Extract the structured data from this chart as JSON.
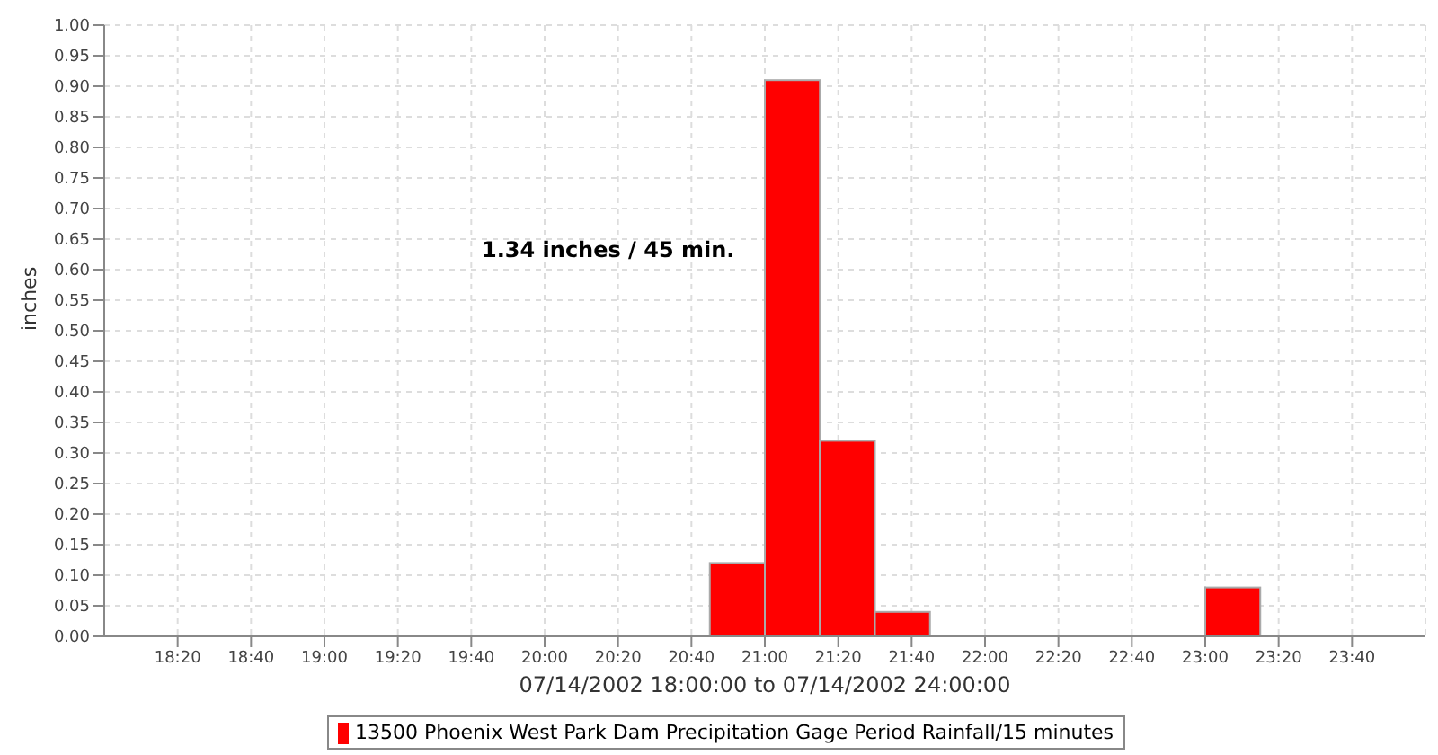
{
  "chart_data": {
    "type": "histogram",
    "xlabel": "07/14/2002 18:00:00 to 07/14/2002 24:00:00",
    "ylabel": "inches",
    "annotations": [
      "1.34 inches / 45 min."
    ],
    "bins": [
      "2002-07-14T18:00",
      "2002-07-14T18:15",
      "2002-07-14T18:30",
      "2002-07-14T18:45",
      "2002-07-14T19:00",
      "2002-07-14T19:15",
      "2002-07-14T19:30",
      "2002-07-14T19:45",
      "2002-07-14T20:00",
      "2002-07-14T20:15",
      "2002-07-14T20:30",
      "2002-07-14T20:45",
      "2002-07-14T21:00",
      "2002-07-14T21:15",
      "2002-07-14T21:30",
      "2002-07-14T21:45",
      "2002-07-14T22:00",
      "2002-07-14T22:15",
      "2002-07-14T22:30",
      "2002-07-14T22:45",
      "2002-07-14T23:00",
      "2002-07-14T23:15",
      "2002-07-14T23:30",
      "2002-07-14T23:45",
      "2002-07-15T00:00"
    ],
    "series": [
      {
        "name": "13500 Phoenix West Park Dam Precipitation Gage Period Rainfall/15 minutes",
        "color": "#ff0000",
        "values": [
          0,
          0,
          0,
          0,
          0,
          0,
          0,
          0,
          0,
          0,
          0,
          0.12,
          0.91,
          0.32,
          0.04,
          0,
          0,
          0,
          0,
          0,
          0.08,
          0,
          0,
          0
        ]
      }
    ],
    "xlim": [
      "2002-07-14T18:00",
      "2002-07-15T00:00"
    ],
    "xticks": [
      {
        "value": "2002-07-14T18:20",
        "label": "18:20"
      },
      {
        "value": "2002-07-14T18:40",
        "label": "18:40"
      },
      {
        "value": "2002-07-14T19:00",
        "label": "19:00"
      },
      {
        "value": "2002-07-14T19:20",
        "label": "19:20"
      },
      {
        "value": "2002-07-14T19:40",
        "label": "19:40"
      },
      {
        "value": "2002-07-14T20:00",
        "label": "20:00"
      },
      {
        "value": "2002-07-14T20:20",
        "label": "20:20"
      },
      {
        "value": "2002-07-14T20:40",
        "label": "20:40"
      },
      {
        "value": "2002-07-14T21:00",
        "label": "21:00"
      },
      {
        "value": "2002-07-14T21:20",
        "label": "21:20"
      },
      {
        "value": "2002-07-14T21:40",
        "label": "21:40"
      },
      {
        "value": "2002-07-14T22:00",
        "label": "22:00"
      },
      {
        "value": "2002-07-14T22:20",
        "label": "22:20"
      },
      {
        "value": "2002-07-14T22:40",
        "label": "22:40"
      },
      {
        "value": "2002-07-14T23:00",
        "label": "23:00"
      },
      {
        "value": "2002-07-14T23:20",
        "label": "23:20"
      },
      {
        "value": "2002-07-14T23:40",
        "label": "23:40"
      }
    ],
    "ylim": [
      0,
      1
    ],
    "yticks": [
      {
        "value": 0,
        "label": "0.00"
      },
      {
        "value": 0.05,
        "label": "0.05"
      },
      {
        "value": 0.1,
        "label": "0.10"
      },
      {
        "value": 0.15,
        "label": "0.15"
      },
      {
        "value": 0.2,
        "label": "0.20"
      },
      {
        "value": 0.25,
        "label": "0.25"
      },
      {
        "value": 0.3,
        "label": "0.30"
      },
      {
        "value": 0.35,
        "label": "0.35"
      },
      {
        "value": 0.4,
        "label": "0.40"
      },
      {
        "value": 0.45,
        "label": "0.45"
      },
      {
        "value": 0.5,
        "label": "0.50"
      },
      {
        "value": 0.55,
        "label": "0.55"
      },
      {
        "value": 0.6,
        "label": "0.60"
      },
      {
        "value": 0.65,
        "label": "0.65"
      },
      {
        "value": 0.7,
        "label": "0.70"
      },
      {
        "value": 0.75,
        "label": "0.75"
      },
      {
        "value": 0.8,
        "label": "0.80"
      },
      {
        "value": 0.85,
        "label": "0.85"
      },
      {
        "value": 0.9,
        "label": "0.90"
      },
      {
        "value": 0.95,
        "label": "0.95"
      },
      {
        "value": 1,
        "label": "1.00"
      }
    ],
    "grid": true,
    "legend": "bottom"
  }
}
